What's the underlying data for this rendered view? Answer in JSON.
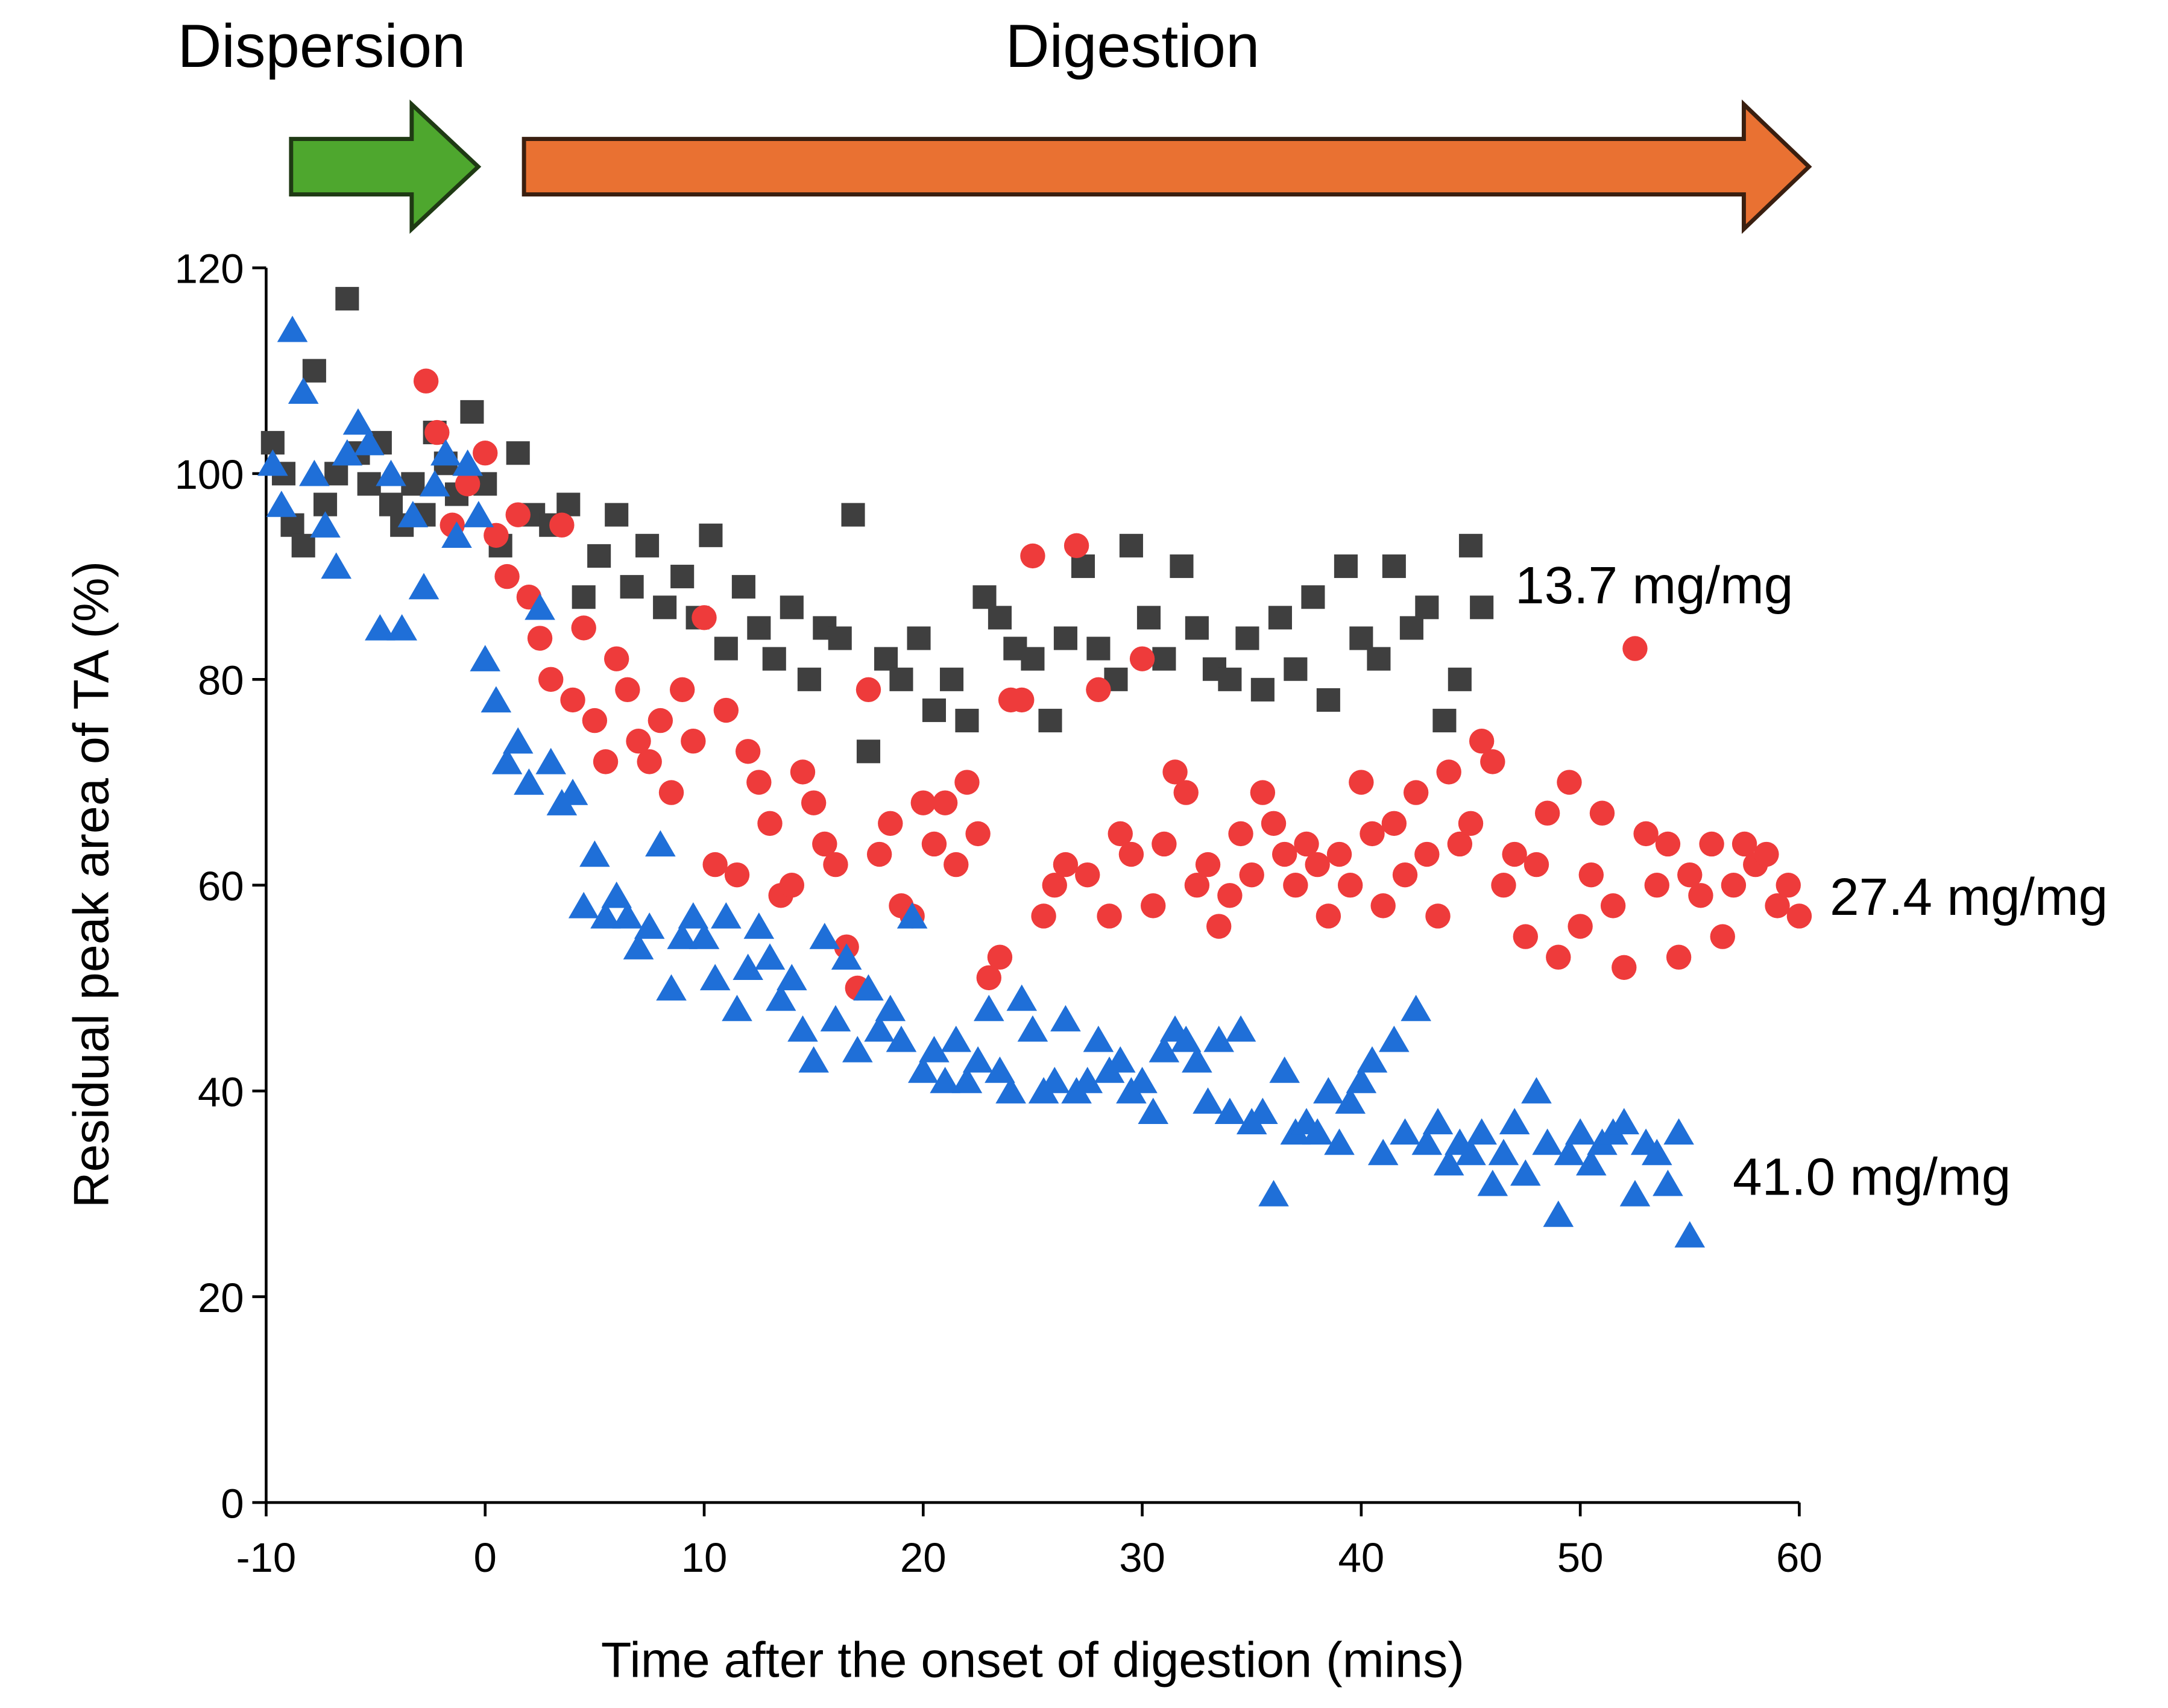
{
  "chart_data": {
    "type": "scatter",
    "annotations": [
      "Dispersion",
      "Digestion"
    ],
    "x_label": "Time after the onset of digestion (mins)",
    "y_label": "Residual peak area of TA (%)",
    "xlim": [
      -10,
      60
    ],
    "xticks": [
      -10,
      0,
      10,
      20,
      30,
      40,
      50,
      60
    ],
    "ylim": [
      0,
      120
    ],
    "yticks": [
      0,
      20,
      40,
      60,
      80,
      100,
      120
    ],
    "grid": false,
    "series": [
      {
        "name": "13.7 mg/mg",
        "color": "#3f3f3f",
        "marker": "square",
        "x": [
          -9.7,
          -9.2,
          -8.8,
          -8.3,
          -7.8,
          -7.3,
          -6.8,
          -6.3,
          -5.8,
          -5.3,
          -4.8,
          -4.3,
          -3.8,
          -3.3,
          -2.8,
          -2.3,
          -1.8,
          -1.3,
          -0.6,
          0,
          0.7,
          1.5,
          2.2,
          3,
          3.8,
          4.5,
          5.2,
          6,
          6.7,
          7.4,
          8.2,
          9,
          9.7,
          10.3,
          11,
          11.8,
          12.5,
          13.2,
          14,
          14.8,
          15.5,
          16.2,
          16.8,
          17.5,
          18.3,
          19,
          19.8,
          20.5,
          21.3,
          22,
          22.8,
          23.5,
          24.2,
          25,
          25.8,
          26.5,
          27.3,
          28,
          28.8,
          29.5,
          30.3,
          31,
          31.8,
          32.5,
          33.3,
          34,
          34.8,
          35.5,
          36.3,
          37,
          37.8,
          38.5,
          39.3,
          40,
          40.8,
          41.5,
          42.3,
          43,
          43.8,
          44.5,
          45,
          45.5
        ],
        "values": [
          103,
          100,
          95,
          93,
          110,
          97,
          100,
          117,
          102,
          99,
          103,
          97,
          95,
          99,
          96,
          104,
          101,
          98,
          106,
          99,
          93,
          102,
          96,
          95,
          97,
          88,
          92,
          96,
          89,
          93,
          87,
          90,
          86,
          94,
          83,
          89,
          85,
          82,
          87,
          80,
          85,
          84,
          96,
          73,
          82,
          80,
          84,
          77,
          80,
          76,
          88,
          86,
          83,
          82,
          76,
          84,
          91,
          83,
          80,
          93,
          86,
          82,
          91,
          85,
          81,
          80,
          84,
          79,
          86,
          81,
          88,
          78,
          91,
          84,
          82,
          91,
          85,
          87,
          76,
          80,
          93,
          87
        ]
      },
      {
        "name": "27.4 mg/mg",
        "color": "#ee3b3b",
        "marker": "circle",
        "x": [
          -2.7,
          -2.2,
          -1.5,
          -0.8,
          0,
          0.5,
          1,
          1.5,
          2,
          2.5,
          3,
          3.5,
          4,
          4.5,
          5,
          5.5,
          6,
          6.5,
          7,
          7.5,
          8,
          8.5,
          9,
          9.5,
          10,
          10.5,
          11,
          11.5,
          12,
          12.5,
          13,
          13.5,
          14,
          14.5,
          15,
          15.5,
          16,
          16.5,
          17,
          17.5,
          18,
          18.5,
          19,
          19.5,
          20,
          20.5,
          21,
          21.5,
          22,
          22.5,
          23,
          23.5,
          24,
          24.5,
          25,
          25.5,
          26,
          26.5,
          27,
          27.5,
          28,
          28.5,
          29,
          29.5,
          30,
          30.5,
          31,
          31.5,
          32,
          32.5,
          33,
          33.5,
          34,
          34.5,
          35,
          35.5,
          36,
          36.5,
          37,
          37.5,
          38,
          38.5,
          39,
          39.5,
          40,
          40.5,
          41,
          41.5,
          42,
          42.5,
          43,
          43.5,
          44,
          44.5,
          45,
          45.5,
          46,
          46.5,
          47,
          47.5,
          48,
          48.5,
          49,
          49.5,
          50,
          50.5,
          51,
          51.5,
          52,
          52.5,
          53,
          53.5,
          54,
          54.5,
          55,
          55.5,
          56,
          56.5,
          57,
          57.5,
          58,
          58.5,
          59,
          59.5,
          60
        ],
        "values": [
          109,
          104,
          95,
          99,
          102,
          94,
          90,
          96,
          88,
          84,
          80,
          95,
          78,
          85,
          76,
          72,
          82,
          79,
          74,
          72,
          76,
          69,
          79,
          74,
          86,
          62,
          77,
          61,
          73,
          70,
          66,
          59,
          60,
          71,
          68,
          64,
          62,
          54,
          50,
          79,
          63,
          66,
          58,
          57,
          68,
          64,
          68,
          62,
          70,
          65,
          51,
          53,
          78,
          78,
          92,
          57,
          60,
          62,
          93,
          61,
          79,
          57,
          65,
          63,
          82,
          58,
          64,
          71,
          69,
          60,
          62,
          56,
          59,
          65,
          61,
          69,
          66,
          63,
          60,
          64,
          62,
          57,
          63,
          60,
          70,
          65,
          58,
          66,
          61,
          69,
          63,
          57,
          71,
          64,
          66,
          74,
          72,
          60,
          63,
          55,
          62,
          67,
          53,
          70,
          56,
          61,
          67,
          58,
          52,
          83,
          65,
          60,
          64,
          53,
          61,
          59,
          64,
          55,
          60,
          64,
          62,
          63,
          58,
          60,
          57
        ]
      },
      {
        "name": "41.0 mg/mg",
        "color": "#1f6fd8",
        "marker": "triangle",
        "x": [
          -9.7,
          -9.3,
          -8.8,
          -8.3,
          -7.8,
          -7.3,
          -6.8,
          -6.3,
          -5.8,
          -5.3,
          -4.8,
          -4.3,
          -3.8,
          -3.3,
          -2.8,
          -2.3,
          -1.8,
          -1.3,
          -0.8,
          -0.3,
          0,
          0.5,
          1,
          1.5,
          2,
          2.5,
          3,
          3.5,
          4,
          4.5,
          5,
          5.5,
          6,
          6.5,
          7,
          7.5,
          8,
          8.5,
          9,
          9.5,
          10,
          10.5,
          11,
          11.5,
          12,
          12.5,
          13,
          13.5,
          14,
          14.5,
          15,
          15.5,
          16,
          16.5,
          17,
          17.5,
          18,
          18.5,
          19,
          19.5,
          20,
          20.5,
          21,
          21.5,
          22,
          22.5,
          23,
          23.5,
          24,
          24.5,
          25,
          25.5,
          26,
          26.5,
          27,
          27.5,
          28,
          28.5,
          29,
          29.5,
          30,
          30.5,
          31,
          31.5,
          32,
          32.5,
          33,
          33.5,
          34,
          34.5,
          35,
          35.5,
          36,
          36.5,
          37,
          37.5,
          38,
          38.5,
          39,
          39.5,
          40,
          40.5,
          41,
          41.5,
          42,
          42.5,
          43,
          43.5,
          44,
          44.5,
          45,
          45.5,
          46,
          46.5,
          47,
          47.5,
          48,
          48.5,
          49,
          49.5,
          50,
          50.5,
          51,
          51.5,
          52,
          52.5,
          53,
          53.5,
          54,
          54.5,
          55
        ],
        "values": [
          101,
          97,
          114,
          108,
          100,
          95,
          91,
          102,
          105,
          103,
          85,
          100,
          85,
          96,
          89,
          99,
          102,
          94,
          101,
          96,
          82,
          78,
          72,
          74,
          70,
          87,
          72,
          68,
          69,
          58,
          63,
          57,
          59,
          57,
          54,
          56,
          64,
          50,
          55,
          57,
          55,
          51,
          57,
          48,
          52,
          56,
          53,
          49,
          51,
          46,
          43,
          55,
          47,
          53,
          44,
          50,
          46,
          48,
          45,
          57,
          42,
          44,
          41,
          45,
          41,
          43,
          48,
          42,
          40,
          49,
          46,
          40,
          41,
          47,
          40,
          41,
          45,
          42,
          43,
          40,
          41,
          38,
          44,
          46,
          45,
          43,
          39,
          45,
          38,
          46,
          37,
          38,
          30,
          42,
          36,
          37,
          36,
          40,
          35,
          39,
          41,
          43,
          34,
          45,
          36,
          48,
          35,
          37,
          33,
          35,
          34,
          36,
          31,
          34,
          37,
          32,
          40,
          35,
          28,
          34,
          36,
          33,
          35,
          36,
          37,
          30,
          35,
          34,
          31,
          36,
          26
        ]
      }
    ]
  }
}
